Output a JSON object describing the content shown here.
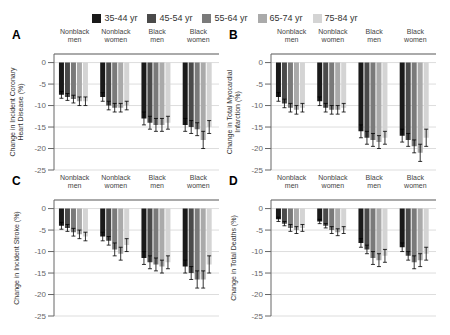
{
  "chart_data": [
    {
      "type": "bar",
      "title": "A",
      "ylabel": "Change in Incident Coronary\nHeart Disease (%)",
      "legend": "top",
      "grid": true,
      "categories": [
        "Nonblack men",
        "Nonblack women",
        "Black men",
        "Black women"
      ],
      "ylim": [
        -25,
        2
      ],
      "yticks": [
        0,
        -5,
        -10,
        -15,
        -20,
        -25
      ],
      "series": [
        {
          "name": "35-44 yr",
          "color": "#1a1a1a",
          "values": [
            -7.5,
            -8.0,
            -13.0,
            -14.5
          ],
          "errors": [
            0.8,
            1.0,
            1.5,
            1.5
          ]
        },
        {
          "name": "45-54 yr",
          "color": "#4a4a4a",
          "values": [
            -8.0,
            -10.0,
            -14.0,
            -15.0
          ],
          "errors": [
            0.8,
            1.0,
            1.5,
            1.5
          ]
        },
        {
          "name": "55-64 yr",
          "color": "#7a7a7a",
          "values": [
            -8.5,
            -10.5,
            -14.5,
            -15.5
          ],
          "errors": [
            0.9,
            1.0,
            1.5,
            1.5
          ]
        },
        {
          "name": "65-74 yr",
          "color": "#aaaaaa",
          "values": [
            -9.0,
            -10.5,
            -14.5,
            -18.0
          ],
          "errors": [
            1.0,
            1.0,
            1.5,
            2.0
          ]
        },
        {
          "name": "75-84 yr",
          "color": "#d4d4d4",
          "values": [
            -9.0,
            -10.0,
            -14.0,
            -15.0
          ],
          "errors": [
            1.0,
            1.0,
            1.5,
            1.5
          ]
        }
      ]
    },
    {
      "type": "bar",
      "title": "B",
      "ylabel": "Change in Total Myocardial\nInfarction (%)",
      "grid": true,
      "categories": [
        "Nonblack men",
        "Nonblack women",
        "Black men",
        "Black women"
      ],
      "ylim": [
        -25,
        2
      ],
      "yticks": [
        0,
        -5,
        -10,
        -15,
        -20,
        -25
      ],
      "series": [
        {
          "name": "35-44 yr",
          "color": "#1a1a1a",
          "values": [
            -8.0,
            -9.0,
            -16.0,
            -17.0
          ],
          "errors": [
            1.0,
            1.0,
            1.5,
            1.5
          ]
        },
        {
          "name": "45-54 yr",
          "color": "#4a4a4a",
          "values": [
            -9.5,
            -10.5,
            -17.5,
            -18.0
          ],
          "errors": [
            1.0,
            1.0,
            1.5,
            1.5
          ]
        },
        {
          "name": "55-64 yr",
          "color": "#7a7a7a",
          "values": [
            -10.5,
            -11.0,
            -18.0,
            -19.5
          ],
          "errors": [
            1.0,
            1.0,
            1.5,
            1.5
          ]
        },
        {
          "name": "65-74 yr",
          "color": "#aaaaaa",
          "values": [
            -11.0,
            -11.0,
            -18.5,
            -21.0
          ],
          "errors": [
            1.0,
            1.0,
            1.5,
            2.0
          ]
        },
        {
          "name": "75-84 yr",
          "color": "#d4d4d4",
          "values": [
            -10.5,
            -10.5,
            -17.5,
            -17.5
          ],
          "errors": [
            1.0,
            1.0,
            1.5,
            2.0
          ]
        }
      ]
    },
    {
      "type": "bar",
      "title": "C",
      "ylabel": "Change in Incident Stroke (%)",
      "grid": true,
      "categories": [
        "Nonblack men",
        "Nonblack women",
        "Black men",
        "Black women"
      ],
      "ylim": [
        -25,
        2
      ],
      "yticks": [
        0,
        -5,
        -10,
        -15,
        -20,
        -25
      ],
      "series": [
        {
          "name": "35-44 yr",
          "color": "#1a1a1a",
          "values": [
            -4.0,
            -6.5,
            -11.5,
            -13.5
          ],
          "errors": [
            0.8,
            1.0,
            1.5,
            1.5
          ]
        },
        {
          "name": "45-54 yr",
          "color": "#4a4a4a",
          "values": [
            -4.5,
            -7.5,
            -12.5,
            -15.0
          ],
          "errors": [
            0.8,
            1.0,
            1.5,
            1.5
          ]
        },
        {
          "name": "55-64 yr",
          "color": "#7a7a7a",
          "values": [
            -5.5,
            -9.5,
            -13.0,
            -16.5
          ],
          "errors": [
            0.9,
            1.5,
            1.5,
            2.0
          ]
        },
        {
          "name": "65-74 yr",
          "color": "#aaaaaa",
          "values": [
            -6.0,
            -10.5,
            -13.5,
            -16.5
          ],
          "errors": [
            1.0,
            1.5,
            1.5,
            2.0
          ]
        },
        {
          "name": "75-84 yr",
          "color": "#d4d4d4",
          "values": [
            -6.5,
            -8.5,
            -12.5,
            -13.0
          ],
          "errors": [
            1.0,
            1.5,
            1.5,
            2.0
          ]
        }
      ]
    },
    {
      "type": "bar",
      "title": "D",
      "ylabel": "Change in Total Deaths (%)",
      "grid": true,
      "categories": [
        "Nonblack men",
        "Nonblack women",
        "Black men",
        "Black women"
      ],
      "ylim": [
        -25,
        2
      ],
      "yticks": [
        0,
        -5,
        -10,
        -15,
        -20,
        -25
      ],
      "series": [
        {
          "name": "35-44 yr",
          "color": "#1a1a1a",
          "values": [
            -2.5,
            -3.0,
            -8.0,
            -9.0
          ],
          "errors": [
            0.5,
            0.5,
            1.0,
            1.0
          ]
        },
        {
          "name": "45-54 yr",
          "color": "#4a4a4a",
          "values": [
            -3.5,
            -4.0,
            -9.5,
            -11.0
          ],
          "errors": [
            0.5,
            0.5,
            1.0,
            1.0
          ]
        },
        {
          "name": "55-64 yr",
          "color": "#7a7a7a",
          "values": [
            -4.5,
            -5.0,
            -11.5,
            -12.5
          ],
          "errors": [
            0.8,
            0.8,
            1.5,
            1.5
          ]
        },
        {
          "name": "65-74 yr",
          "color": "#aaaaaa",
          "values": [
            -5.0,
            -5.5,
            -12.0,
            -12.0
          ],
          "errors": [
            0.8,
            0.8,
            1.5,
            1.5
          ]
        },
        {
          "name": "75-84 yr",
          "color": "#d4d4d4",
          "values": [
            -4.5,
            -5.0,
            -11.0,
            -10.5
          ],
          "errors": [
            0.8,
            0.8,
            1.5,
            1.5
          ]
        }
      ]
    }
  ]
}
